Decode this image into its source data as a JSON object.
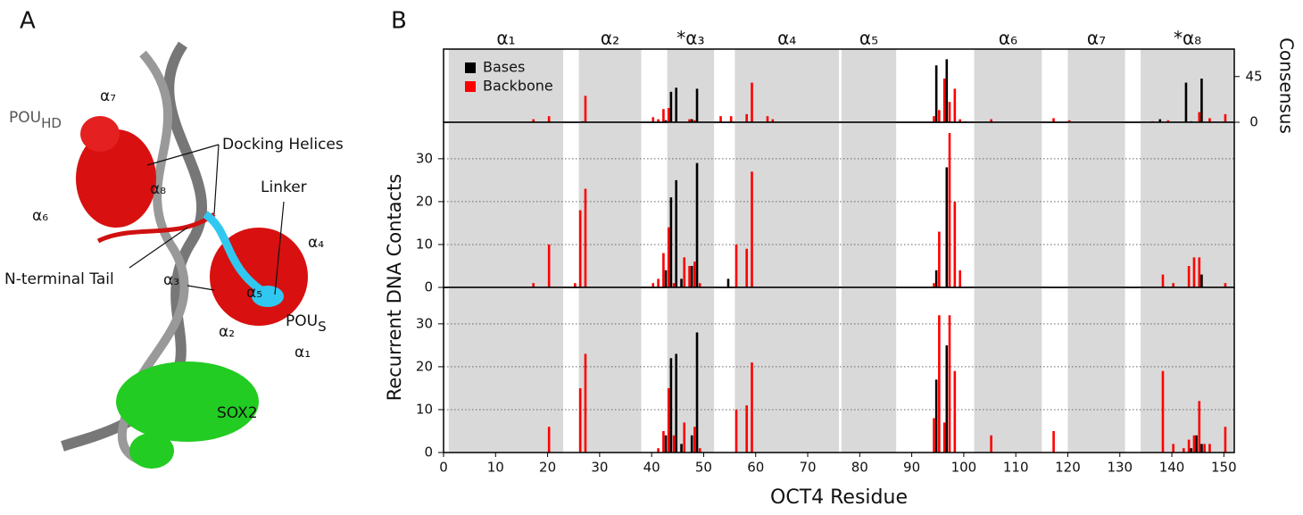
{
  "panels": {
    "a": "A",
    "b": "B"
  },
  "panel_a": {
    "labels": [
      "Docking Helices",
      "Linker",
      "N-terminal Tail",
      "SOX2"
    ],
    "pou_hd": {
      "text": "POU",
      "sub": "HD"
    },
    "pou_s": {
      "text": "POU",
      "sub": "S"
    },
    "helix_labels": [
      "α₇",
      "α₈",
      "α₆",
      "α₃",
      "α₅",
      "α₄",
      "α₂",
      "α₁"
    ]
  },
  "chart_data": [
    {
      "type": "bar",
      "xlim": [
        0,
        152
      ],
      "ylim": [
        0,
        72
      ],
      "yticks": [
        0,
        45
      ],
      "yaxis_side": "right",
      "ylabel": "Consensus",
      "legend": "upper left",
      "regions": [
        {
          "label": "α₁",
          "start": 1,
          "end": 23
        },
        {
          "label": "α₂",
          "start": 26,
          "end": 38
        },
        {
          "label": "*α₃",
          "start": 43,
          "end": 52
        },
        {
          "label": "α₄",
          "start": 56,
          "end": 76
        },
        {
          "label": "α₅",
          "start": 76.5,
          "end": 87
        },
        {
          "label": "α₆",
          "start": 102,
          "end": 115
        },
        {
          "label": "α₇",
          "start": 120,
          "end": 131
        },
        {
          "label": "*α₈",
          "start": 134,
          "end": 152
        }
      ],
      "series": [
        {
          "name": "Bases",
          "color": "#000000",
          "x": [
            27,
            43,
            44,
            45,
            48,
            49,
            95,
            97,
            138,
            143,
            144,
            146
          ],
          "values": [
            1,
            2,
            30,
            34,
            3,
            33,
            56,
            62,
            3,
            39,
            1,
            43
          ]
        },
        {
          "name": "Backbone",
          "color": "#ff0000",
          "x": [
            17,
            20,
            27,
            40,
            41,
            42,
            43,
            47,
            48,
            53,
            55,
            58,
            59,
            62,
            63,
            94,
            95,
            96,
            97,
            98,
            99,
            100,
            105,
            117,
            120,
            136,
            139,
            145,
            147,
            150
          ],
          "values": [
            3,
            6,
            26,
            5,
            3,
            13,
            14,
            3,
            2,
            6,
            6,
            8,
            39,
            6,
            3,
            6,
            12,
            43,
            20,
            33,
            3,
            1,
            3,
            4,
            2,
            1,
            2,
            10,
            4,
            8
          ]
        }
      ]
    },
    {
      "type": "bar",
      "xlim": [
        0,
        152
      ],
      "ylim": [
        0,
        38.5
      ],
      "yticks": [
        0,
        10,
        20,
        30
      ],
      "grid": true,
      "ylabel": "Recurrent DNA Contacts",
      "series": [
        {
          "color": "#000000",
          "x": [
            43,
            44,
            45,
            46,
            48,
            49,
            55,
            95,
            97,
            146
          ],
          "values": [
            4,
            21,
            25,
            2,
            5,
            29,
            2,
            4,
            28,
            3
          ]
        },
        {
          "color": "#ff0000",
          "x": [
            17,
            20,
            25,
            26,
            27,
            40,
            41,
            42,
            43,
            44,
            46,
            47,
            48,
            49,
            56,
            58,
            59,
            94,
            95,
            97,
            98,
            99,
            138,
            140,
            143,
            144,
            145,
            150
          ],
          "values": [
            1,
            10,
            1,
            18,
            23,
            1,
            2,
            8,
            14,
            1,
            7,
            5,
            6,
            1,
            10,
            9,
            27,
            1,
            13,
            36,
            20,
            4,
            3,
            1,
            5,
            7,
            7,
            1
          ]
        }
      ]
    },
    {
      "type": "bar",
      "xlim": [
        0,
        152
      ],
      "ylim": [
        0,
        38.5
      ],
      "yticks": [
        0,
        10,
        20,
        30
      ],
      "grid": true,
      "xlabel": "OCT4 Residue",
      "xticks": [
        0,
        10,
        20,
        30,
        40,
        50,
        60,
        70,
        80,
        90,
        100,
        110,
        120,
        130,
        140,
        150
      ],
      "series": [
        {
          "color": "#000000",
          "x": [
            43,
            44,
            45,
            46,
            48,
            49,
            95,
            97,
            144,
            145,
            146
          ],
          "values": [
            4,
            22,
            23,
            2,
            4,
            28,
            17,
            25,
            1,
            4,
            2
          ]
        },
        {
          "color": "#ff0000",
          "x": [
            20,
            26,
            27,
            41,
            42,
            43,
            44,
            46,
            48,
            49,
            56,
            58,
            59,
            94,
            95,
            96,
            97,
            98,
            105,
            117,
            138,
            140,
            142,
            143,
            144,
            145,
            146,
            147,
            150
          ],
          "values": [
            6,
            15,
            23,
            1,
            5,
            15,
            4,
            7,
            6,
            1,
            10,
            11,
            21,
            8,
            32,
            7,
            32,
            19,
            4,
            5,
            19,
            2,
            1,
            3,
            4,
            12,
            2,
            2,
            6
          ]
        }
      ]
    }
  ]
}
